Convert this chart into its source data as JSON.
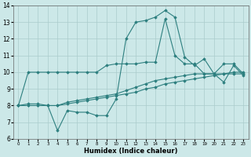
{
  "title": "",
  "xlabel": "Humidex (Indice chaleur)",
  "background_color": "#cce8e8",
  "grid_color": "#aacccc",
  "line_color": "#2d7f7f",
  "xlim": [
    -0.5,
    23.5
  ],
  "ylim": [
    6,
    14
  ],
  "yticks": [
    6,
    7,
    8,
    9,
    10,
    11,
    12,
    13,
    14
  ],
  "xticks": [
    0,
    1,
    2,
    3,
    4,
    5,
    6,
    7,
    8,
    9,
    10,
    11,
    12,
    13,
    14,
    15,
    16,
    17,
    18,
    19,
    20,
    21,
    22,
    23
  ],
  "series": [
    {
      "x": [
        0,
        1,
        2,
        3,
        4,
        5,
        6,
        7,
        8,
        9,
        10,
        11,
        12,
        13,
        14,
        15,
        16,
        17,
        18,
        19,
        20,
        21,
        22,
        23
      ],
      "y": [
        8.0,
        10.0,
        10.0,
        10.0,
        10.0,
        10.0,
        10.0,
        10.0,
        10.0,
        10.4,
        10.5,
        10.5,
        10.5,
        10.6,
        10.6,
        13.2,
        11.0,
        10.5,
        10.5,
        9.9,
        9.9,
        10.5,
        10.5,
        9.9
      ]
    },
    {
      "x": [
        0,
        1,
        2,
        3,
        4,
        5,
        6,
        7,
        8,
        9,
        10,
        11,
        12,
        13,
        14,
        15,
        16,
        17,
        18,
        19,
        20,
        21,
        22,
        23
      ],
      "y": [
        8.0,
        8.1,
        8.1,
        8.0,
        6.5,
        7.7,
        7.6,
        7.6,
        7.4,
        7.4,
        8.4,
        12.0,
        13.0,
        13.1,
        13.3,
        13.7,
        13.3,
        10.9,
        10.4,
        10.8,
        9.9,
        9.4,
        10.4,
        9.8
      ]
    },
    {
      "x": [
        0,
        1,
        2,
        3,
        4,
        5,
        6,
        7,
        8,
        9,
        10,
        11,
        12,
        13,
        14,
        15,
        16,
        17,
        18,
        19,
        20,
        21,
        22,
        23
      ],
      "y": [
        8.0,
        8.0,
        8.0,
        8.0,
        8.0,
        8.1,
        8.2,
        8.3,
        8.4,
        8.5,
        8.6,
        8.7,
        8.8,
        9.0,
        9.1,
        9.3,
        9.4,
        9.5,
        9.6,
        9.7,
        9.8,
        9.9,
        10.0,
        10.0
      ]
    },
    {
      "x": [
        0,
        1,
        2,
        3,
        4,
        5,
        6,
        7,
        8,
        9,
        10,
        11,
        12,
        13,
        14,
        15,
        16,
        17,
        18,
        19,
        20,
        21,
        22,
        23
      ],
      "y": [
        8.0,
        8.0,
        8.0,
        8.0,
        8.0,
        8.2,
        8.3,
        8.4,
        8.5,
        8.6,
        8.7,
        8.9,
        9.1,
        9.3,
        9.5,
        9.6,
        9.7,
        9.8,
        9.9,
        9.9,
        9.9,
        9.9,
        9.9,
        9.9
      ]
    }
  ]
}
